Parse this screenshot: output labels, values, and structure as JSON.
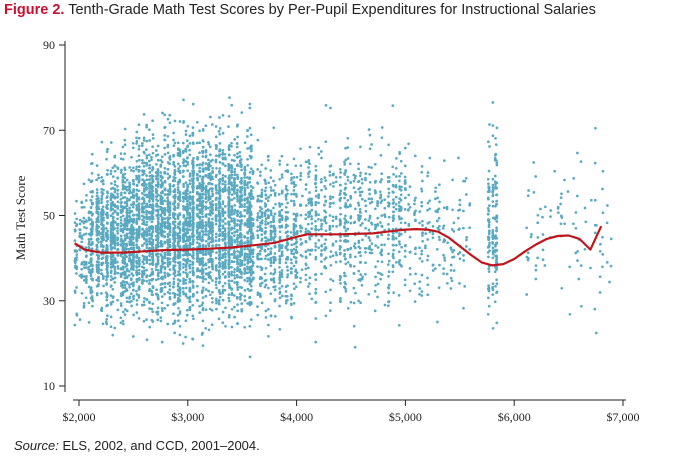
{
  "figure": {
    "label": "Figure 2.",
    "title": "Tenth-Grade Math Test Scores by Per-Pupil Expenditures for Instructional Salaries",
    "source_label": "Source:",
    "source_text": "ELS, 2002, and CCD, 2001–2004."
  },
  "colors": {
    "points": "#5aa9c0",
    "trend": "#c0151b",
    "axis": "#222222",
    "label_red": "#c8102e"
  },
  "chart_data": {
    "type": "scatter",
    "title": "Tenth-Grade Math Test Scores by Per-Pupil Expenditures for Instructional Salaries",
    "xlabel": "",
    "ylabel": "Math Test Score",
    "xlim": [
      1950,
      7050
    ],
    "ylim": [
      8,
      92
    ],
    "x_ticks": [
      2000,
      3000,
      4000,
      5000,
      6000,
      7000
    ],
    "x_tick_labels": [
      "$2,000",
      "$3,000",
      "$4,000",
      "$5,000",
      "$6,000",
      "$7,000"
    ],
    "y_ticks": [
      10,
      30,
      50,
      70,
      90
    ],
    "y_tick_labels": [
      "10",
      "30",
      "50",
      "70",
      "90"
    ],
    "scatter_density": [
      {
        "x_range": [
          1950,
          2100
        ],
        "y_range": [
          18,
          65
        ],
        "count": 120
      },
      {
        "x_range": [
          2100,
          2500
        ],
        "y_range": [
          16,
          74
        ],
        "count": 900
      },
      {
        "x_range": [
          2500,
          3600
        ],
        "y_range": [
          14,
          82
        ],
        "count": 3200
      },
      {
        "x_range": [
          3600,
          4000
        ],
        "y_range": [
          16,
          76
        ],
        "count": 500
      },
      {
        "x_range": [
          4000,
          4600
        ],
        "y_range": [
          18,
          78
        ],
        "count": 450
      },
      {
        "x_range": [
          4600,
          5000
        ],
        "y_range": [
          18,
          80
        ],
        "count": 260
      },
      {
        "x_range": [
          5000,
          5600
        ],
        "y_range": [
          18,
          74
        ],
        "count": 180
      },
      {
        "x_range": [
          5750,
          5850
        ],
        "y_range": [
          14,
          82
        ],
        "count": 160
      },
      {
        "x_range": [
          6100,
          6900
        ],
        "y_range": [
          18,
          74
        ],
        "count": 90
      }
    ],
    "trend_line": {
      "name": "Smoothed mean",
      "x": [
        1960,
        2050,
        2200,
        2400,
        2600,
        2800,
        3000,
        3200,
        3400,
        3600,
        3800,
        4000,
        4100,
        4400,
        4700,
        4900,
        5000,
        5100,
        5200,
        5300,
        5400,
        5500,
        5600,
        5700,
        5800,
        5900,
        6000,
        6100,
        6200,
        6300,
        6400,
        6500,
        6600,
        6700,
        6800
      ],
      "y": [
        43.5,
        42,
        41.3,
        41.3,
        41.6,
        41.9,
        42,
        42.2,
        42.5,
        43,
        43.6,
        45,
        45.6,
        45.6,
        45.8,
        46.4,
        46.7,
        46.8,
        46.7,
        46.2,
        44.8,
        42.8,
        40.8,
        39,
        38.3,
        38.6,
        39.8,
        41.6,
        43.2,
        44.5,
        45.2,
        45.3,
        44.5,
        42,
        47.5
      ]
    }
  }
}
